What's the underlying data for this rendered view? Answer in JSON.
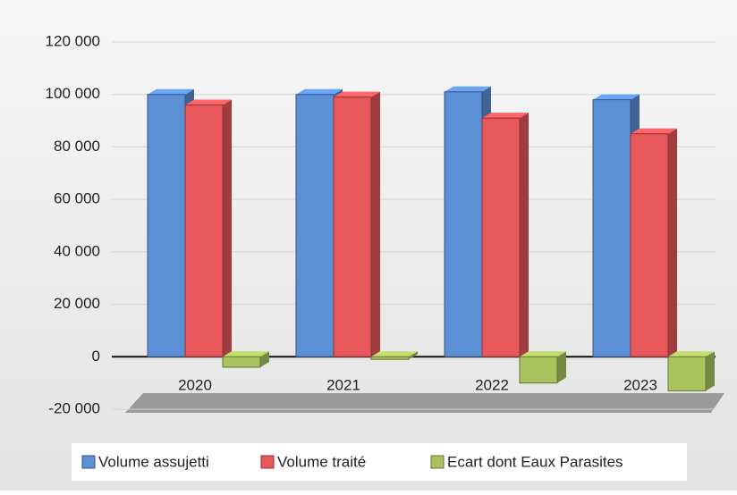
{
  "chart_data": {
    "type": "bar3d",
    "categories": [
      "2020",
      "2021",
      "2022",
      "2023"
    ],
    "series": [
      {
        "name": "Volume assujetti",
        "color": "#5b8fd6",
        "values": [
          100000,
          100000,
          101000,
          98000
        ]
      },
      {
        "name": "Volume traité",
        "color": "#e8575a",
        "values": [
          96000,
          99000,
          91000,
          85000
        ]
      },
      {
        "name": "Ecart dont Eaux Parasites",
        "color": "#a9c25e",
        "values": [
          -4000,
          -1000,
          -10000,
          -13000
        ]
      }
    ],
    "ylim": [
      -20000,
      120000
    ],
    "yticks": [
      {
        "value": -20000,
        "label": "-20 000"
      },
      0,
      {
        "value": 20000,
        "label": "20 000"
      },
      {
        "value": 40000,
        "label": "40 000"
      },
      {
        "value": 60000,
        "label": "60 000"
      },
      {
        "value": 80000,
        "label": "80 000"
      },
      {
        "value": 100000,
        "label": "100 000"
      },
      {
        "value": 120000,
        "label": "120 000"
      }
    ],
    "grid": true,
    "legend": "bottom"
  }
}
